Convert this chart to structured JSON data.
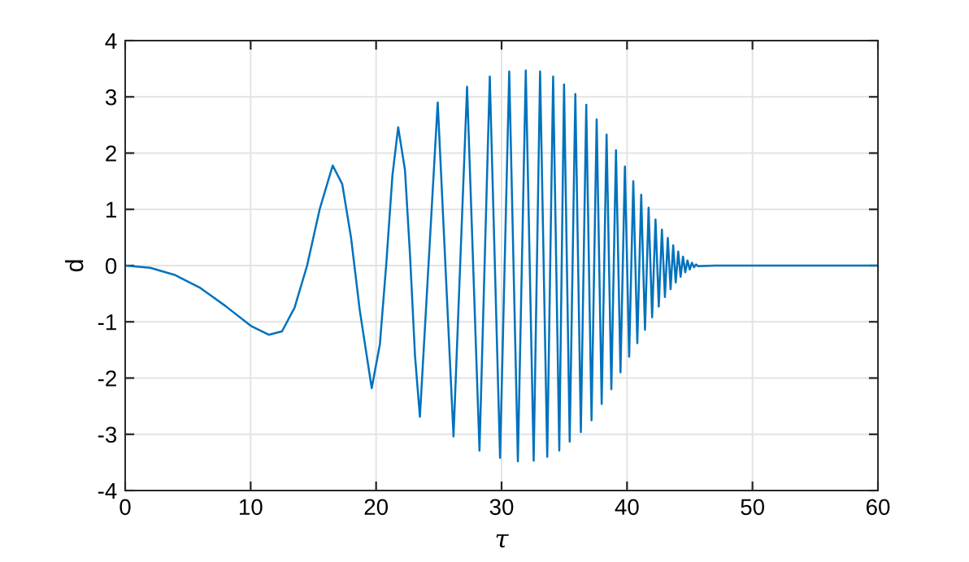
{
  "chart_data": {
    "type": "line",
    "xlabel": "τ",
    "ylabel": "d",
    "xlim": [
      0,
      60
    ],
    "ylim": [
      -4,
      4
    ],
    "xticks": [
      0,
      10,
      20,
      30,
      40,
      50,
      60
    ],
    "yticks": [
      -4,
      -3,
      -2,
      -1,
      0,
      1,
      2,
      3,
      4
    ],
    "grid": true,
    "marker": "none",
    "line_style": "solid",
    "series": [
      {
        "color": "#0072bd",
        "x": [
          0,
          2,
          4,
          6,
          8,
          10,
          11.44,
          12.5,
          13.5,
          14.5,
          15.5,
          16.54,
          17.3,
          18,
          18.7,
          19.65,
          20.3,
          20.8,
          21.3,
          21.76,
          22.3,
          22.7,
          23.1,
          23.49,
          24.91,
          26.17,
          27.25,
          28.24,
          29.06,
          29.88,
          30.61,
          31.3,
          31.93,
          32.56,
          33.07,
          33.64,
          34.11,
          34.6,
          34.98,
          35.43,
          35.88,
          36.32,
          36.75,
          37.17,
          37.58,
          37.98,
          38.37,
          38.75,
          39.12,
          39.48,
          39.83,
          40.17,
          40.5,
          40.82,
          41.13,
          41.43,
          41.72,
          42.0,
          42.27,
          42.53,
          42.78,
          43.02,
          43.25,
          43.47,
          43.68,
          43.88,
          44.08,
          44.27,
          44.46,
          44.64,
          44.82,
          45.0,
          45.17,
          45.34,
          45.5,
          45.67,
          47,
          60
        ],
        "values": [
          0,
          -0.04,
          -0.17,
          -0.4,
          -0.72,
          -1.07,
          -1.23,
          -1.17,
          -0.75,
          0,
          1.0,
          1.78,
          1.45,
          0.5,
          -0.8,
          -2.18,
          -1.4,
          0,
          1.6,
          2.46,
          1.7,
          0.2,
          -1.6,
          -2.69,
          2.9,
          -3.04,
          3.18,
          -3.29,
          3.36,
          -3.42,
          3.45,
          -3.48,
          3.47,
          -3.47,
          3.45,
          -3.4,
          3.36,
          -3.29,
          3.22,
          -3.13,
          3.05,
          -2.96,
          2.86,
          -2.75,
          2.6,
          -2.46,
          2.33,
          -2.2,
          2.05,
          -1.9,
          1.76,
          -1.62,
          1.5,
          -1.38,
          1.26,
          -1.14,
          1.03,
          -0.92,
          0.82,
          -0.73,
          0.64,
          -0.56,
          0.49,
          -0.42,
          0.36,
          -0.3,
          0.25,
          -0.2,
          0.16,
          -0.12,
          0.09,
          -0.07,
          0.05,
          -0.03,
          0.02,
          -0.01,
          0,
          0
        ]
      }
    ]
  }
}
